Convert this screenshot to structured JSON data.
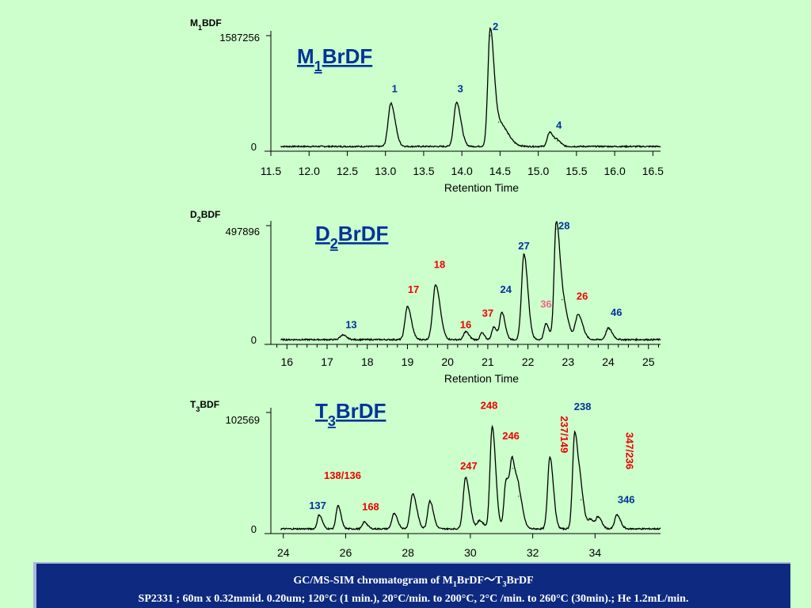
{
  "colors": {
    "background": "#ccffcc",
    "blue": "#003399",
    "red": "#ee0000",
    "pink": "#ee6688",
    "footer": "#0d2a80"
  },
  "chart_data": [
    {
      "type": "line",
      "panel_label": "BDF",
      "panel_label_prefix": "M",
      "panel_label_sub": "1",
      "title_prefix": "M",
      "title_sub": "1",
      "title_suffix": "BrDF",
      "ymax_label": "1587256",
      "ymin_label": "0",
      "xlabel": "Retention Time",
      "xlim": [
        11.5,
        16.6
      ],
      "ylim": [
        0,
        1
      ],
      "xticks": [
        "11.5",
        "12.0",
        "12.5",
        "13.0",
        "13.5",
        "14.0",
        "14.5",
        "15.0",
        "15.5",
        "16.0",
        "16.5"
      ],
      "xtick_values": [
        11.5,
        12.0,
        12.5,
        13.0,
        13.5,
        14.0,
        14.5,
        15.0,
        15.5,
        16.0,
        16.5
      ],
      "minor_ticks": false,
      "peaks": [
        {
          "x": 13.07,
          "y": 0.39,
          "w": 0.035
        },
        {
          "x": 13.93,
          "y": 0.4,
          "w": 0.035
        },
        {
          "x": 14.37,
          "y": 1.0,
          "w": 0.03
        },
        {
          "x": 14.48,
          "y": 0.22,
          "w": 0.07
        },
        {
          "x": 15.15,
          "y": 0.13,
          "w": 0.03
        },
        {
          "x": 15.25,
          "y": 0.05,
          "w": 0.03
        }
      ],
      "labels": [
        {
          "text": "1",
          "x": 13.12,
          "y": 0.49,
          "color": "blue"
        },
        {
          "text": "3",
          "x": 13.98,
          "y": 0.49,
          "color": "blue"
        },
        {
          "text": "2",
          "x": 14.44,
          "y": 1.05,
          "color": "blue"
        },
        {
          "text": "4",
          "x": 15.27,
          "y": 0.16,
          "color": "blue"
        }
      ]
    },
    {
      "type": "line",
      "panel_label": "BDF",
      "panel_label_prefix": "D",
      "panel_label_sub": "2",
      "title_prefix": "D",
      "title_sub": "2",
      "title_suffix": "BrDF",
      "ymax_label": "497896",
      "ymin_label": "0",
      "xlabel": "Retention Time",
      "xlim": [
        15.6,
        25.3
      ],
      "ylim": [
        0,
        1
      ],
      "xticks": [
        "16",
        "17",
        "18",
        "19",
        "20",
        "21",
        "22",
        "23",
        "24",
        "25"
      ],
      "xtick_values": [
        16,
        17,
        18,
        19,
        20,
        21,
        22,
        23,
        24,
        25
      ],
      "minor_ticks": true,
      "peaks": [
        {
          "x": 17.38,
          "y": 0.04,
          "w": 0.06
        },
        {
          "x": 19.0,
          "y": 0.29,
          "w": 0.06
        },
        {
          "x": 19.7,
          "y": 0.48,
          "w": 0.07
        },
        {
          "x": 20.45,
          "y": 0.07,
          "w": 0.05
        },
        {
          "x": 20.85,
          "y": 0.06,
          "w": 0.04
        },
        {
          "x": 21.15,
          "y": 0.11,
          "w": 0.05
        },
        {
          "x": 21.35,
          "y": 0.24,
          "w": 0.05
        },
        {
          "x": 21.9,
          "y": 0.75,
          "w": 0.06
        },
        {
          "x": 22.45,
          "y": 0.14,
          "w": 0.05
        },
        {
          "x": 22.7,
          "y": 0.97,
          "w": 0.05
        },
        {
          "x": 22.85,
          "y": 0.35,
          "w": 0.08
        },
        {
          "x": 23.25,
          "y": 0.22,
          "w": 0.07
        },
        {
          "x": 24.0,
          "y": 0.1,
          "w": 0.06
        }
      ],
      "labels": [
        {
          "text": "13",
          "x": 17.6,
          "y": 0.1,
          "color": "blue"
        },
        {
          "text": "17",
          "x": 19.15,
          "y": 0.41,
          "color": "red"
        },
        {
          "text": "18",
          "x": 19.8,
          "y": 0.63,
          "color": "red"
        },
        {
          "text": "16",
          "x": 20.45,
          "y": 0.1,
          "color": "red"
        },
        {
          "text": "37",
          "x": 21.0,
          "y": 0.2,
          "color": "red"
        },
        {
          "text": "24",
          "x": 21.45,
          "y": 0.41,
          "color": "blue"
        },
        {
          "text": "27",
          "x": 21.9,
          "y": 0.79,
          "color": "blue"
        },
        {
          "text": "36",
          "x": 22.45,
          "y": 0.28,
          "color": "pink"
        },
        {
          "text": "28",
          "x": 22.9,
          "y": 0.97,
          "color": "blue"
        },
        {
          "text": "26",
          "x": 23.35,
          "y": 0.35,
          "color": "red"
        },
        {
          "text": "46",
          "x": 24.2,
          "y": 0.21,
          "color": "blue"
        }
      ]
    },
    {
      "type": "line",
      "panel_label": "BDF",
      "panel_label_prefix": "T",
      "panel_label_sub": "3",
      "title_prefix": "T",
      "title_sub": "3",
      "title_suffix": "BrDF",
      "ymax_label": "102569",
      "ymin_label": "0",
      "xlabel": "",
      "xlim": [
        23.6,
        36.1
      ],
      "ylim": [
        0,
        1
      ],
      "xticks": [
        "24",
        "26",
        "28",
        "30",
        "32",
        "34"
      ],
      "xtick_values": [
        24,
        26,
        28,
        30,
        32,
        34
      ],
      "minor_ticks": false,
      "peaks": [
        {
          "x": 25.15,
          "y": 0.12,
          "w": 0.06
        },
        {
          "x": 25.75,
          "y": 0.2,
          "w": 0.06
        },
        {
          "x": 26.6,
          "y": 0.06,
          "w": 0.06
        },
        {
          "x": 27.55,
          "y": 0.13,
          "w": 0.07
        },
        {
          "x": 28.15,
          "y": 0.3,
          "w": 0.08
        },
        {
          "x": 28.7,
          "y": 0.24,
          "w": 0.07
        },
        {
          "x": 29.85,
          "y": 0.44,
          "w": 0.08
        },
        {
          "x": 30.3,
          "y": 0.07,
          "w": 0.08
        },
        {
          "x": 30.7,
          "y": 0.88,
          "w": 0.07
        },
        {
          "x": 31.15,
          "y": 0.42,
          "w": 0.07
        },
        {
          "x": 31.35,
          "y": 0.52,
          "w": 0.07
        },
        {
          "x": 31.55,
          "y": 0.28,
          "w": 0.08
        },
        {
          "x": 32.55,
          "y": 0.62,
          "w": 0.07
        },
        {
          "x": 33.35,
          "y": 0.83,
          "w": 0.07
        },
        {
          "x": 33.55,
          "y": 0.25,
          "w": 0.07
        },
        {
          "x": 33.85,
          "y": 0.08,
          "w": 0.07
        },
        {
          "x": 34.1,
          "y": 0.1,
          "w": 0.07
        },
        {
          "x": 34.7,
          "y": 0.12,
          "w": 0.07
        }
      ],
      "labels": [
        {
          "text": "137",
          "x": 25.1,
          "y": 0.17,
          "color": "blue"
        },
        {
          "text": "138/136",
          "x": 25.9,
          "y": 0.43,
          "color": "red"
        },
        {
          "text": "168",
          "x": 26.8,
          "y": 0.16,
          "color": "red"
        },
        {
          "text": "247",
          "x": 29.95,
          "y": 0.51,
          "color": "red"
        },
        {
          "text": "248",
          "x": 30.6,
          "y": 1.03,
          "color": "red"
        },
        {
          "text": "246",
          "x": 31.3,
          "y": 0.77,
          "color": "red"
        },
        {
          "text": "238",
          "x": 33.6,
          "y": 1.02,
          "color": "blue"
        },
        {
          "text": "346",
          "x": 35.0,
          "y": 0.22,
          "color": "blue"
        }
      ],
      "vertical_labels": [
        {
          "text": "237/149",
          "x": 32.9,
          "y": 0.97,
          "color": "red"
        },
        {
          "text": "347/236",
          "x": 35.0,
          "y": 0.83,
          "color": "red"
        }
      ]
    }
  ],
  "footer": {
    "line1_prefix": "GC/MS-SIM chromatogram of M",
    "line1_sub1": "1",
    "line1_mid": "BrDF～T",
    "line1_sub2": "3",
    "line1_suffix": "BrDF",
    "line2": "SP2331 ; 60m x 0.32mmid. 0.20um; 120°C (1 min.), 20°C/min. to 200°C, 2°C /min. to 260°C (30min).; He 1.2mL/min."
  }
}
